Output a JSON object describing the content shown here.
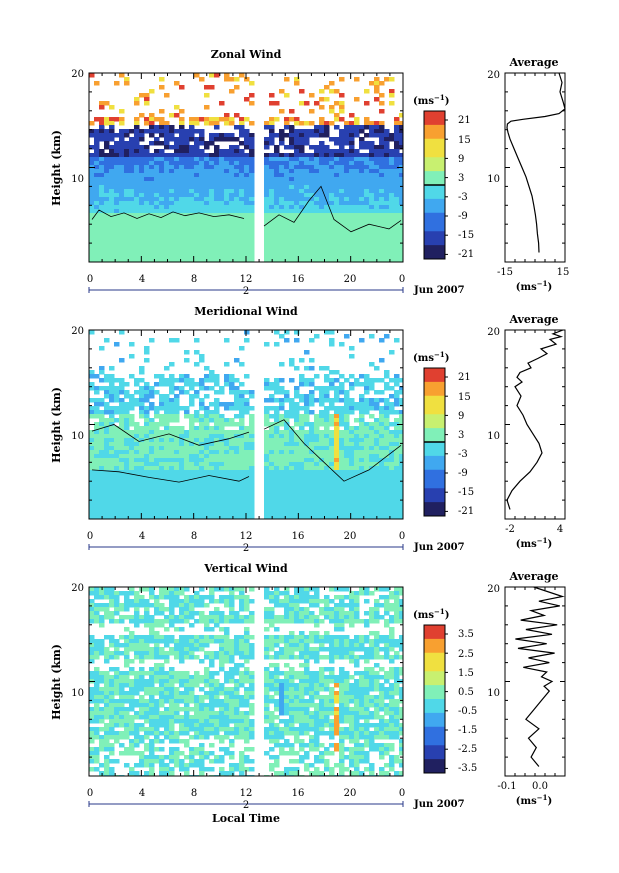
{
  "chart_data": [
    {
      "type": "heatmap",
      "title": "Zonal Wind",
      "ylabel": "Height (km)",
      "ylim": [
        0,
        20
      ],
      "x_ticks": [
        "0",
        "4",
        "8",
        "12",
        "16",
        "20",
        "0"
      ],
      "y_ticks": [
        "10",
        "20"
      ],
      "date_marker": "2",
      "date_label": "Jun 2007",
      "colorbar": {
        "unit": "(ms",
        "unit_exp": "−1",
        "unit_close": ")",
        "ticks": [
          "21",
          "15",
          "9",
          "3",
          "-3",
          "-9",
          "-15",
          "-21"
        ],
        "range": [
          -24,
          24
        ]
      },
      "avg": {
        "title": "Average",
        "xlabel": "(ms",
        "xlabel_exp": "−1",
        "xlabel_close": ")",
        "x_ticks": [
          "-15",
          "15"
        ],
        "xlim": [
          -15,
          15
        ],
        "y_ticks": [
          "10",
          "20"
        ],
        "profile_x": [
          2,
          1.8,
          1.2,
          0.8,
          0.2,
          -0.6,
          -1.5,
          -3,
          -4.5,
          -6.5,
          -8.5,
          -10.5,
          -12.5,
          -13.5,
          -14,
          -13.8,
          -12,
          -6,
          5,
          12,
          15,
          14,
          12.5,
          13.5,
          12
        ],
        "profile_y": [
          1,
          2,
          3,
          4,
          5,
          6,
          7,
          8,
          9,
          10,
          11,
          12,
          13,
          13.7,
          14.2,
          14.6,
          14.9,
          15.1,
          15.4,
          15.7,
          16.2,
          17,
          18,
          19,
          20
        ]
      }
    },
    {
      "type": "heatmap",
      "title": "Meridional Wind",
      "ylabel": "Height (km)",
      "ylim": [
        0,
        20
      ],
      "x_ticks": [
        "0",
        "4",
        "8",
        "12",
        "16",
        "20",
        "0"
      ],
      "y_ticks": [
        "10",
        "20"
      ],
      "date_marker": "2",
      "date_label": "Jun 2007",
      "colorbar": {
        "unit": "(ms",
        "unit_exp": "−1",
        "unit_close": ")",
        "ticks": [
          "21",
          "15",
          "9",
          "3",
          "-3",
          "-9",
          "-15",
          "-21"
        ],
        "range": [
          -24,
          24
        ]
      },
      "avg": {
        "title": "Average",
        "xlabel": "(ms",
        "xlabel_exp": "−1",
        "xlabel_close": ")",
        "x_ticks": [
          "-2",
          "4"
        ],
        "xlim": [
          -2,
          4
        ],
        "y_ticks": [
          "10",
          "20"
        ],
        "profile_x": [
          -1.5,
          -1.8,
          -1.3,
          -0.5,
          0.5,
          1.2,
          1.7,
          1.4,
          0.8,
          0.2,
          -0.2,
          -0.8,
          -0.4,
          -1.0,
          -0.3,
          -0.8,
          -0.5,
          0.6,
          0.3,
          1.3,
          2.2,
          1.6,
          3.1,
          2.5,
          3.6,
          2.8,
          3.8
        ],
        "profile_y": [
          1,
          2,
          3,
          4,
          5,
          6,
          7,
          8,
          9,
          10,
          11,
          12,
          13,
          14,
          14.5,
          15,
          15.5,
          16,
          16.5,
          17,
          17.5,
          18,
          18.5,
          19,
          19.3,
          19.6,
          20
        ]
      }
    },
    {
      "type": "heatmap",
      "title": "Vertical Wind",
      "ylabel": "Height (km)",
      "xlabel": "Local Time",
      "ylim": [
        0,
        20
      ],
      "x_ticks": [
        "0",
        "4",
        "8",
        "12",
        "16",
        "20",
        "0"
      ],
      "y_ticks": [
        "10",
        "20"
      ],
      "date_marker": "2",
      "date_label": "Jun 2007",
      "colorbar": {
        "unit": "(ms",
        "unit_exp": "−1",
        "unit_close": ")",
        "ticks": [
          "3.5",
          "2.5",
          "1.5",
          "0.5",
          "-0.5",
          "-1.5",
          "-2.5",
          "-3.5"
        ],
        "range": [
          -4,
          4
        ]
      },
      "avg": {
        "title": "Average",
        "xlabel": "(ms",
        "xlabel_exp": "−1",
        "xlabel_close": ")",
        "x_ticks": [
          "-0.1",
          "0.0"
        ],
        "xlim": [
          -0.15,
          0.08
        ],
        "y_ticks": [
          "10",
          "20"
        ],
        "profile_x": [
          -0.02,
          -0.05,
          -0.03,
          -0.06,
          -0.02,
          -0.07,
          -0.04,
          -0.01,
          0.02,
          0.0,
          0.03,
          -0.01,
          0.01,
          -0.08,
          0.02,
          -0.06,
          0.04,
          -0.1,
          0.01,
          -0.11,
          0.03,
          -0.07,
          0.05,
          -0.09,
          0.0,
          -0.05,
          0.06,
          -0.02,
          0.07,
          -0.04
        ],
        "profile_y": [
          1,
          2,
          3,
          4,
          5,
          6,
          7,
          8,
          9,
          9.5,
          10,
          10.5,
          11,
          11.5,
          12,
          12.5,
          13,
          13.5,
          14,
          14.5,
          15,
          15.5,
          16,
          16.5,
          17,
          17.5,
          18,
          18.5,
          19,
          20
        ]
      }
    }
  ]
}
